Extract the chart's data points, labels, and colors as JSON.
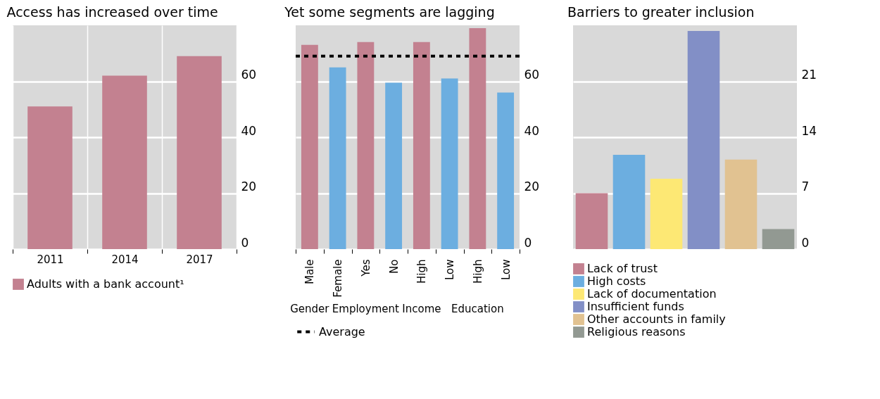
{
  "chart_data": [
    {
      "type": "bar",
      "title": "Access has increased over time",
      "categories": [
        "2011",
        "2014",
        "2017"
      ],
      "series": [
        {
          "name": "Adults with a bank account¹",
          "color": "#c38190",
          "values": [
            51,
            62,
            69
          ]
        }
      ],
      "ylim": [
        0,
        80
      ],
      "yticks": [
        0,
        20,
        40,
        60
      ],
      "grid": true,
      "legend": "bottom"
    },
    {
      "type": "bar",
      "title": "Yet some segments are lagging",
      "categories": [
        "Male",
        "Female",
        "Yes",
        "No",
        "High",
        "Low",
        "High",
        "Low"
      ],
      "values": [
        73,
        65,
        74,
        59.5,
        74,
        61,
        79,
        56
      ],
      "colors": [
        "#c38190",
        "#6caee0",
        "#c38190",
        "#6caee0",
        "#c38190",
        "#6caee0",
        "#c38190",
        "#6caee0"
      ],
      "annotations": [
        "Gender",
        "Employment",
        "Income",
        "Education"
      ],
      "ref_lines": [
        {
          "axis": "y",
          "value": 69,
          "label": "Average",
          "color": "#000000",
          "line_style": "dashed"
        }
      ],
      "ylim": [
        0,
        80
      ],
      "yticks": [
        0,
        20,
        40,
        60
      ],
      "grid": "y",
      "legend": "bottom"
    },
    {
      "type": "bar",
      "title": "Barriers to greater inclusion",
      "categories": [
        null,
        null,
        null,
        null,
        null,
        null
      ],
      "series": [
        {
          "name": "Lack of trust",
          "color": "#c38190",
          "values": [
            7,
            null,
            null,
            null,
            null,
            null
          ]
        },
        {
          "name": "High costs",
          "color": "#6caee0",
          "values": [
            null,
            11.8,
            null,
            null,
            null,
            null
          ]
        },
        {
          "name": "Lack of documentation",
          "color": "#fde874",
          "values": [
            null,
            null,
            8.8,
            null,
            null,
            null
          ]
        },
        {
          "name": "Insufficient funds",
          "color": "#828fc6",
          "values": [
            null,
            null,
            null,
            27.3,
            null,
            null
          ]
        },
        {
          "name": "Other accounts in family",
          "color": "#e1c291",
          "values": [
            null,
            null,
            null,
            null,
            11.2,
            null
          ]
        },
        {
          "name": "Religious reasons",
          "color": "#929992",
          "values": [
            null,
            null,
            null,
            null,
            null,
            2.5
          ]
        }
      ],
      "ylim": [
        0,
        28
      ],
      "yticks": [
        0,
        7,
        14,
        21
      ],
      "grid": "y",
      "legend": "bottom",
      "tick_labels": "y"
    }
  ]
}
